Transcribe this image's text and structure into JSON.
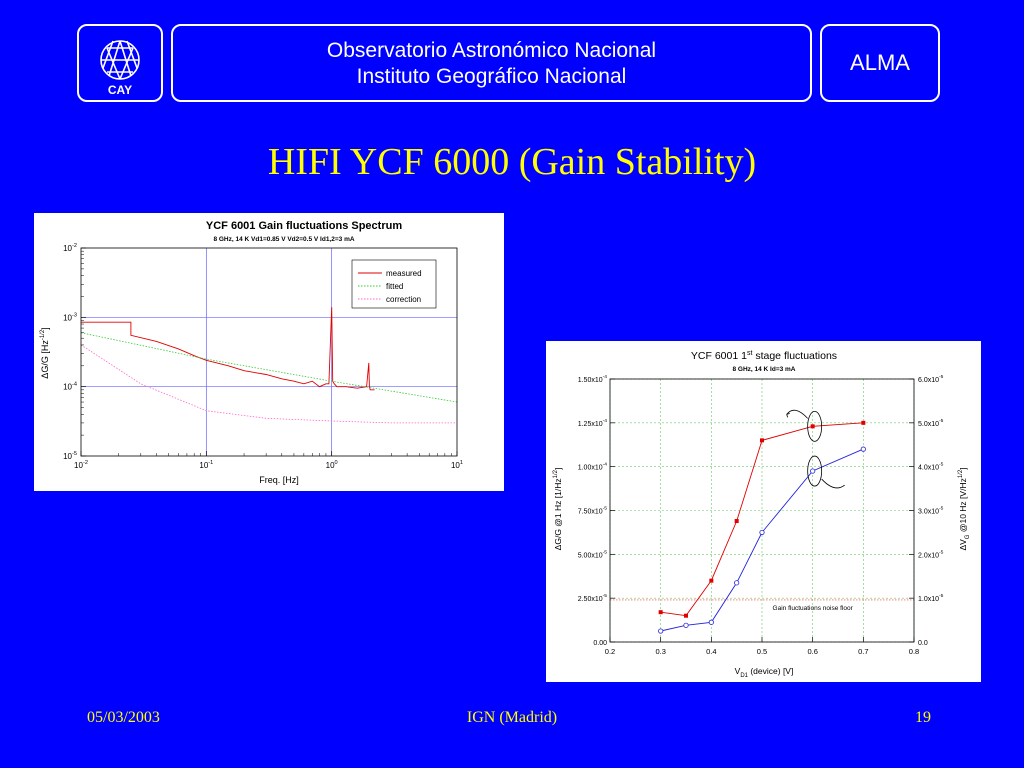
{
  "header": {
    "logo_text": "CAY",
    "institution_line1": "Observatorio Astronómico Nacional",
    "institution_line2": "Instituto Geográfico Nacional",
    "project": "ALMA"
  },
  "slide_title": "HIFI YCF 6000 (Gain Stability)",
  "footer": {
    "date": "05/03/2003",
    "center": "IGN (Madrid)",
    "page": "19"
  },
  "colors": {
    "background": "#0000ff",
    "title": "#ffff00",
    "measured": "#e00000",
    "fitted": "#33cc33",
    "correction": "#ff66cc",
    "series2": "#2222dd"
  },
  "chart_data": [
    {
      "type": "line",
      "title": "YCF 6001 Gain fluctuations Spectrum",
      "subtitle": "8 GHz, 14 K   Vd1=0.85 V Vd2=0.5 V Id1,2=3 mA",
      "xlabel": "Freq. [Hz]",
      "ylabel_main": "ΔG/G  [Hz",
      "ylabel_sup": "-1/2",
      "ylabel_end": "]",
      "x_scale": "log",
      "y_scale": "log",
      "xlim": [
        0.01,
        10
      ],
      "ylim": [
        1e-05,
        0.01
      ],
      "x_ticks": [
        {
          "value": 0.01,
          "base": "10",
          "exp": "-2"
        },
        {
          "value": 0.1,
          "base": "10",
          "exp": "-1"
        },
        {
          "value": 1,
          "base": "10",
          "exp": "0"
        },
        {
          "value": 10,
          "base": "10",
          "exp": "1"
        }
      ],
      "y_ticks": [
        {
          "value": 1e-05,
          "base": "10",
          "exp": "-5"
        },
        {
          "value": 0.0001,
          "base": "10",
          "exp": "-4"
        },
        {
          "value": 0.001,
          "base": "10",
          "exp": "-3"
        },
        {
          "value": 0.01,
          "base": "10",
          "exp": "-2"
        }
      ],
      "grid": {
        "x": [
          0.1,
          1
        ],
        "y": [
          0.0001,
          0.001
        ]
      },
      "legend_position": "top-right",
      "series": [
        {
          "name": "measured",
          "color": "#e00000",
          "style": "solid",
          "x": [
            0.01,
            0.025,
            0.025,
            0.04,
            0.06,
            0.08,
            0.1,
            0.15,
            0.2,
            0.3,
            0.4,
            0.5,
            0.6,
            0.7,
            0.8,
            0.9,
            0.95,
            1.0,
            1.02,
            1.05,
            1.1,
            1.3,
            1.6,
            1.9,
            1.98,
            2.0,
            2.03,
            2.2
          ],
          "y": [
            0.00085,
            0.00085,
            0.00055,
            0.00045,
            0.00035,
            0.00028,
            0.00024,
            0.0002,
            0.00017,
            0.00015,
            0.00013,
            0.00012,
            0.00011,
            0.00012,
            0.0001,
            0.00011,
            0.00011,
            0.0014,
            0.00012,
            0.00011,
            0.0001,
            0.0001,
            9.5e-05,
            0.0001,
            0.00022,
            0.0001,
            9e-05,
            9e-05
          ]
        },
        {
          "name": "fitted",
          "color": "#33cc33",
          "style": "dotted",
          "x": [
            0.01,
            0.1,
            1,
            10
          ],
          "y": [
            0.0006,
            0.00025,
            0.00012,
            6e-05
          ]
        },
        {
          "name": "correction",
          "color": "#ff66cc",
          "style": "dotted",
          "x": [
            0.01,
            0.03,
            0.1,
            0.3,
            1,
            3,
            10
          ],
          "y": [
            0.0004,
            0.00011,
            4.5e-05,
            3.5e-05,
            3.2e-05,
            3e-05,
            3e-05
          ]
        }
      ]
    },
    {
      "type": "line",
      "title_pre": "YCF 6001 1",
      "title_sup": "st",
      "title_post": " stage fluctuations",
      "subtitle": "8 GHz, 14 K  Id=3 mA",
      "xlabel_pre": "V",
      "xlabel_sub": "D1",
      "xlabel_post": " (device) [V]",
      "ylabel_left_main": "ΔG/G @1 Hz [1/Hz",
      "ylabel_left_sup": "1/2",
      "ylabel_left_end": "]",
      "ylabel_right_pre": "ΔV",
      "ylabel_right_sub": "G",
      "ylabel_right_mid": " @10 Hz [V/Hz",
      "ylabel_right_sup": "1/2",
      "ylabel_right_end": "]",
      "xlim": [
        0.2,
        0.8
      ],
      "ylim_left": [
        0,
        0.00015
      ],
      "ylim_right": [
        0,
        6e-05
      ],
      "x_ticks": [
        "0.2",
        "0.3",
        "0.4",
        "0.5",
        "0.6",
        "0.7",
        "0.8"
      ],
      "y_left_ticks": [
        {
          "value": 0,
          "mant": "0.00",
          "exp": ""
        },
        {
          "value": 2.5e-05,
          "mant": "2.50x10",
          "exp": "-5"
        },
        {
          "value": 5e-05,
          "mant": "5.00x10",
          "exp": "-5"
        },
        {
          "value": 7.5e-05,
          "mant": "7.50x10",
          "exp": "-5"
        },
        {
          "value": 0.0001,
          "mant": "1.00x10",
          "exp": "-4"
        },
        {
          "value": 0.000125,
          "mant": "1.25x10",
          "exp": "-4"
        },
        {
          "value": 0.00015,
          "mant": "1.50x10",
          "exp": "-4"
        }
      ],
      "y_right_ticks": [
        {
          "value": 0,
          "mant": "0.0",
          "exp": ""
        },
        {
          "value": 1e-05,
          "mant": "1.0x10",
          "exp": "-5"
        },
        {
          "value": 2e-05,
          "mant": "2.0x10",
          "exp": "-5"
        },
        {
          "value": 3e-05,
          "mant": "3.0x10",
          "exp": "-5"
        },
        {
          "value": 4e-05,
          "mant": "4.0x10",
          "exp": "-5"
        },
        {
          "value": 5e-05,
          "mant": "5.0x10",
          "exp": "-5"
        },
        {
          "value": 6e-05,
          "mant": "6.0x10",
          "exp": "-5"
        }
      ],
      "grid": "on",
      "noise_floor": {
        "label": "Gain fluctuations noise floor",
        "value": 2.4e-05
      },
      "series": [
        {
          "axis": "left",
          "color": "#e00000",
          "marker": "square-filled",
          "x": [
            0.3,
            0.35,
            0.4,
            0.45,
            0.5,
            0.6,
            0.7
          ],
          "y": [
            1.7e-05,
            1.5e-05,
            3.5e-05,
            6.9e-05,
            0.000115,
            0.000123,
            0.000125
          ]
        },
        {
          "axis": "right",
          "color": "#2222dd",
          "marker": "circle-open",
          "x": [
            0.3,
            0.35,
            0.4,
            0.45,
            0.5,
            0.6,
            0.7
          ],
          "y": [
            2.5e-06,
            3.8e-06,
            4.5e-06,
            1.35e-05,
            2.5e-05,
            3.9e-05,
            4.4e-05
          ]
        }
      ]
    }
  ]
}
